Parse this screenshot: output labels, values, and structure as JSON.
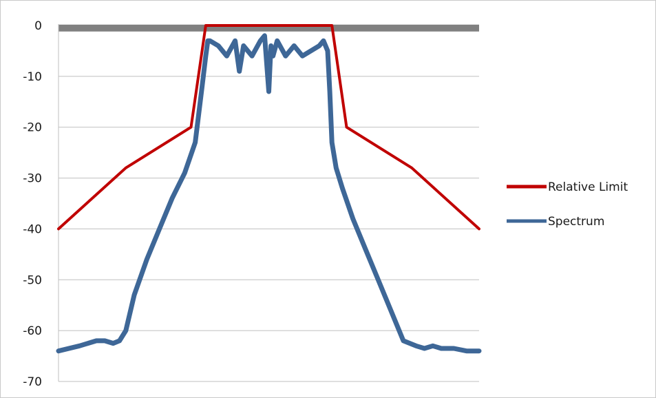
{
  "chart_data": {
    "type": "line",
    "title": "",
    "xlabel": "",
    "ylabel": "",
    "ylim": [
      -70,
      0
    ],
    "yticks": [
      0,
      -10,
      -20,
      -30,
      -40,
      -50,
      -60,
      -70
    ],
    "xlim": [
      0,
      100
    ],
    "grid": "horizontal",
    "legend_position": "right",
    "top_band": {
      "y": -0.5,
      "color": "#808080"
    },
    "series": [
      {
        "name": "Relative Limit",
        "color": "#c00000",
        "x": [
          0,
          16,
          31.5,
          35,
          65,
          68.5,
          84,
          100
        ],
        "y": [
          -40,
          -28,
          -20,
          0,
          0,
          -20,
          -28,
          -40
        ]
      },
      {
        "name": "Spectrum",
        "color": "#3e6797",
        "x": [
          0,
          5,
          9,
          11,
          13,
          14.5,
          16,
          18,
          21,
          24,
          27,
          30,
          32.5,
          34,
          35,
          35.5,
          36,
          38,
          40,
          42,
          43,
          44,
          46,
          48,
          49,
          50,
          50.5,
          51,
          52,
          54,
          56,
          58,
          60,
          62,
          63,
          64,
          64.5,
          65,
          66,
          67.5,
          70,
          73,
          76,
          79,
          82,
          85,
          87,
          89,
          91,
          94,
          97,
          100
        ],
        "y": [
          -64,
          -63,
          -62,
          -62,
          -62.5,
          -62,
          -60,
          -53,
          -46,
          -40,
          -34,
          -29,
          -23,
          -13,
          -6,
          -3,
          -3,
          -4,
          -6,
          -3,
          -9,
          -4,
          -6,
          -3,
          -2,
          -13,
          -4,
          -6,
          -3,
          -6,
          -4,
          -6,
          -5,
          -4,
          -3,
          -5,
          -13,
          -23,
          -28,
          -32,
          -38,
          -44,
          -50,
          -56,
          -62,
          -63,
          -63.5,
          -63,
          -63.5,
          -63.5,
          -64,
          -64
        ]
      }
    ]
  }
}
